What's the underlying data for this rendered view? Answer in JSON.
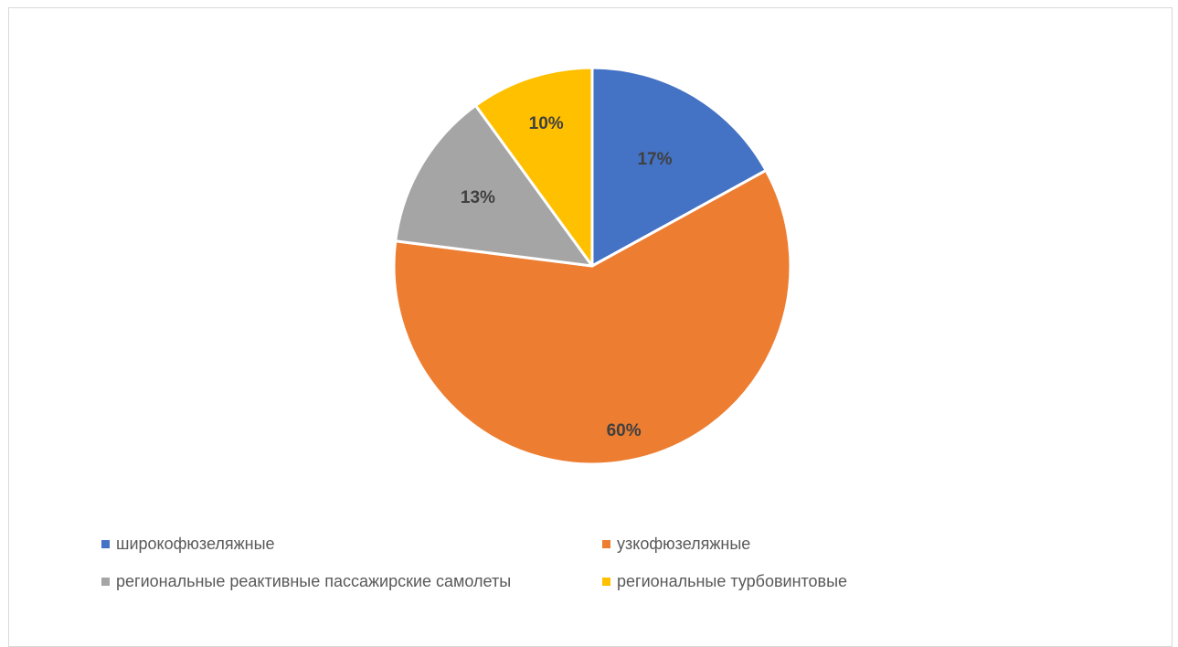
{
  "chart_data": {
    "type": "pie",
    "categories": [
      "широкофюзеляжные",
      "узкофюзеляжные",
      "региональные реактивные пассажирские самолеты",
      "региональные турбовинтовые"
    ],
    "values": [
      17,
      60,
      13,
      10
    ],
    "data_labels": [
      "17%",
      "60%",
      "13%",
      "10%"
    ],
    "colors": [
      "#4472c4",
      "#ed7d31",
      "#a5a5a5",
      "#ffc000"
    ],
    "title": "",
    "legend_placement": "bottom"
  }
}
